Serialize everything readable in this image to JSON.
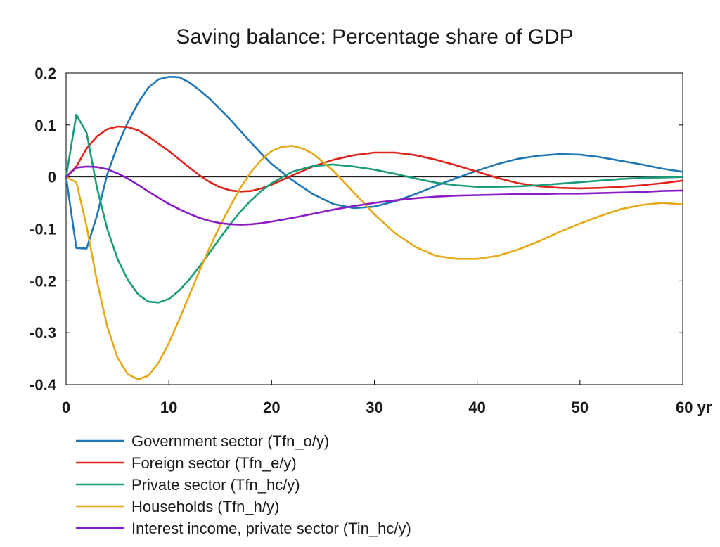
{
  "chart_data": {
    "type": "line",
    "title": "Saving balance: Percentage share of GDP",
    "xlabel": "",
    "ylabel": "",
    "x_unit": "yr",
    "xlim": [
      0,
      60
    ],
    "ylim": [
      -0.4,
      0.2
    ],
    "x_ticks": [
      0,
      10,
      20,
      30,
      40,
      50,
      60
    ],
    "x_tick_labels": [
      "0",
      "10",
      "20",
      "30",
      "40",
      "50",
      "60 yr"
    ],
    "y_ticks": [
      -0.4,
      -0.3,
      -0.2,
      -0.1,
      0,
      0.1,
      0.2
    ],
    "y_tick_labels": [
      "-0.4",
      "-0.3",
      "-0.2",
      "-0.1",
      "0",
      "0.1",
      "0.2"
    ],
    "grid": false,
    "zero_line": true,
    "legend_position": "bottom-left",
    "series": [
      {
        "name": "Government sector (Tfn_o/y)",
        "color": "#1f77b4",
        "x": [
          0,
          1,
          2,
          3,
          4,
          5,
          6,
          7,
          8,
          9,
          10,
          11,
          12,
          13,
          14,
          15,
          16,
          17,
          18,
          19,
          20,
          22,
          24,
          26,
          28,
          30,
          32,
          34,
          36,
          38,
          40,
          42,
          44,
          46,
          48,
          50,
          52,
          54,
          56,
          58,
          60
        ],
        "y": [
          0,
          -0.137,
          -0.138,
          -0.075,
          0.005,
          0.06,
          0.105,
          0.142,
          0.172,
          0.188,
          0.193,
          0.192,
          0.182,
          0.167,
          0.15,
          0.13,
          0.11,
          0.088,
          0.066,
          0.045,
          0.025,
          -0.006,
          -0.033,
          -0.052,
          -0.06,
          -0.057,
          -0.047,
          -0.033,
          -0.017,
          -0.002,
          0.012,
          0.025,
          0.035,
          0.041,
          0.044,
          0.043,
          0.038,
          0.031,
          0.024,
          0.016,
          0.01
        ]
      },
      {
        "name": "Foreign sector (Tfn_e/y)",
        "color": "#e0241b",
        "x": [
          0,
          1,
          2,
          3,
          4,
          5,
          6,
          7,
          8,
          9,
          10,
          11,
          12,
          13,
          14,
          15,
          16,
          17,
          18,
          19,
          20,
          22,
          24,
          26,
          28,
          30,
          32,
          34,
          36,
          38,
          40,
          42,
          44,
          46,
          48,
          50,
          52,
          54,
          56,
          58,
          60
        ],
        "y": [
          0,
          0.02,
          0.055,
          0.078,
          0.092,
          0.097,
          0.096,
          0.09,
          0.078,
          0.064,
          0.05,
          0.034,
          0.018,
          0.003,
          -0.01,
          -0.02,
          -0.026,
          -0.028,
          -0.027,
          -0.022,
          -0.015,
          0.003,
          0.02,
          0.033,
          0.042,
          0.047,
          0.047,
          0.042,
          0.033,
          0.022,
          0.01,
          -0.002,
          -0.012,
          -0.018,
          -0.021,
          -0.022,
          -0.021,
          -0.019,
          -0.016,
          -0.012,
          -0.007
        ]
      },
      {
        "name": "Private sector (Tfn_hc/y)",
        "color": "#1a9c7a",
        "x": [
          0,
          1,
          2,
          3,
          4,
          5,
          6,
          7,
          8,
          9,
          10,
          11,
          12,
          13,
          14,
          15,
          16,
          17,
          18,
          19,
          20,
          22,
          24,
          26,
          28,
          30,
          32,
          34,
          36,
          38,
          40,
          42,
          44,
          46,
          48,
          50,
          52,
          54,
          56,
          58,
          60
        ],
        "y": [
          0,
          0.12,
          0.085,
          -0.02,
          -0.1,
          -0.158,
          -0.198,
          -0.226,
          -0.24,
          -0.242,
          -0.235,
          -0.219,
          -0.197,
          -0.172,
          -0.145,
          -0.117,
          -0.09,
          -0.066,
          -0.045,
          -0.027,
          -0.012,
          0.01,
          0.021,
          0.024,
          0.02,
          0.014,
          0.006,
          -0.003,
          -0.011,
          -0.016,
          -0.019,
          -0.019,
          -0.018,
          -0.016,
          -0.013,
          -0.01,
          -0.007,
          -0.004,
          -0.002,
          -0.001,
          0
        ]
      },
      {
        "name": "Households (Tfn_h/y)",
        "color": "#e6a817",
        "x": [
          0,
          1,
          2,
          3,
          4,
          5,
          6,
          7,
          8,
          9,
          10,
          11,
          12,
          13,
          14,
          15,
          16,
          17,
          18,
          19,
          20,
          21,
          22,
          23,
          24,
          26,
          28,
          30,
          32,
          34,
          36,
          38,
          40,
          42,
          44,
          46,
          48,
          50,
          52,
          54,
          56,
          58,
          60
        ],
        "y": [
          0,
          -0.01,
          -0.095,
          -0.2,
          -0.288,
          -0.348,
          -0.38,
          -0.39,
          -0.383,
          -0.358,
          -0.32,
          -0.275,
          -0.228,
          -0.18,
          -0.135,
          -0.093,
          -0.055,
          -0.02,
          0.01,
          0.033,
          0.05,
          0.058,
          0.06,
          0.055,
          0.045,
          0.012,
          -0.03,
          -0.072,
          -0.108,
          -0.135,
          -0.152,
          -0.158,
          -0.158,
          -0.152,
          -0.14,
          -0.124,
          -0.106,
          -0.09,
          -0.075,
          -0.062,
          -0.054,
          -0.05,
          -0.053
        ]
      },
      {
        "name": "Interest income, private sector (Tin_hc/y)",
        "color": "#8a1bc7",
        "x": [
          0,
          1,
          2,
          3,
          4,
          5,
          6,
          7,
          8,
          9,
          10,
          11,
          12,
          13,
          14,
          15,
          16,
          17,
          18,
          19,
          20,
          22,
          24,
          26,
          28,
          30,
          32,
          34,
          36,
          38,
          40,
          42,
          44,
          46,
          48,
          50,
          52,
          54,
          56,
          58,
          60
        ],
        "y": [
          0,
          0.018,
          0.02,
          0.019,
          0.015,
          0.007,
          -0.003,
          -0.015,
          -0.028,
          -0.04,
          -0.052,
          -0.062,
          -0.071,
          -0.079,
          -0.085,
          -0.089,
          -0.091,
          -0.092,
          -0.091,
          -0.089,
          -0.086,
          -0.079,
          -0.071,
          -0.063,
          -0.056,
          -0.05,
          -0.045,
          -0.041,
          -0.038,
          -0.036,
          -0.035,
          -0.034,
          -0.033,
          -0.033,
          -0.032,
          -0.032,
          -0.031,
          -0.03,
          -0.029,
          -0.027,
          -0.026
        ]
      }
    ]
  }
}
